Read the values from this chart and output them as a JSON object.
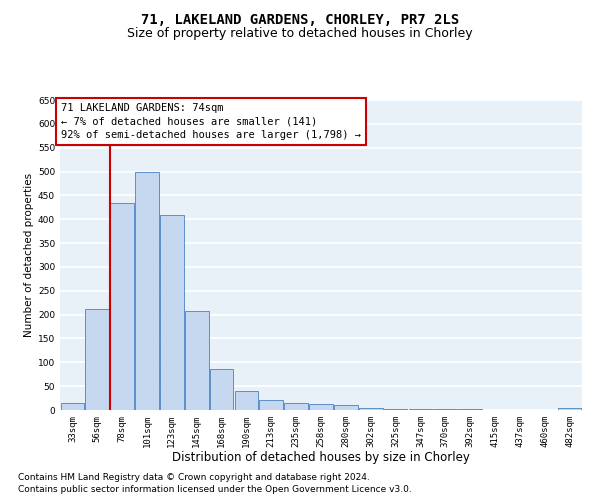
{
  "title": "71, LAKELAND GARDENS, CHORLEY, PR7 2LS",
  "subtitle": "Size of property relative to detached houses in Chorley",
  "xlabel": "Distribution of detached houses by size in Chorley",
  "ylabel": "Number of detached properties",
  "categories": [
    "33sqm",
    "56sqm",
    "78sqm",
    "101sqm",
    "123sqm",
    "145sqm",
    "168sqm",
    "190sqm",
    "213sqm",
    "235sqm",
    "258sqm",
    "280sqm",
    "302sqm",
    "325sqm",
    "347sqm",
    "370sqm",
    "392sqm",
    "415sqm",
    "437sqm",
    "460sqm",
    "482sqm"
  ],
  "values": [
    15,
    212,
    435,
    500,
    408,
    207,
    85,
    40,
    20,
    15,
    12,
    10,
    5,
    3,
    2,
    2,
    2,
    1,
    1,
    1,
    5
  ],
  "bar_color": "#c5d8ef",
  "bar_edge_color": "#5b8fc9",
  "ylim": [
    0,
    650
  ],
  "yticks": [
    0,
    50,
    100,
    150,
    200,
    250,
    300,
    350,
    400,
    450,
    500,
    550,
    600,
    650
  ],
  "property_line_bar_index": 2,
  "property_line_color": "#cc0000",
  "annotation_text": "71 LAKELAND GARDENS: 74sqm\n← 7% of detached houses are smaller (141)\n92% of semi-detached houses are larger (1,798) →",
  "annotation_box_edgecolor": "#cc0000",
  "footer_line1": "Contains HM Land Registry data © Crown copyright and database right 2024.",
  "footer_line2": "Contains public sector information licensed under the Open Government Licence v3.0.",
  "bg_color": "#e8f0f8",
  "grid_color": "#ffffff",
  "title_fontsize": 10,
  "subtitle_fontsize": 9,
  "xlabel_fontsize": 8.5,
  "ylabel_fontsize": 7.5,
  "tick_fontsize": 6.5,
  "annotation_fontsize": 7.5,
  "footer_fontsize": 6.5
}
